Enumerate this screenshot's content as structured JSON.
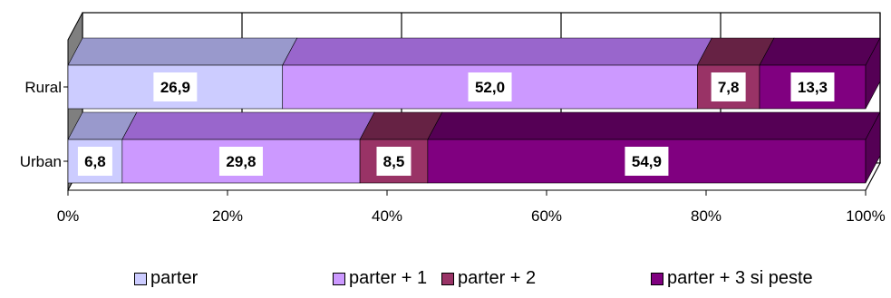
{
  "chart_data": {
    "type": "bar",
    "orientation": "horizontal",
    "stacked": true,
    "three_d": true,
    "categories": [
      "Rural",
      "Urban"
    ],
    "series": [
      {
        "name": "parter",
        "values": [
          26.9,
          6.8
        ],
        "color": "#ccccff",
        "top_color": "#9999cc"
      },
      {
        "name": "parter + 1",
        "values": [
          52.0,
          29.8
        ],
        "color": "#cc99ff",
        "top_color": "#9966cc"
      },
      {
        "name": "parter + 2",
        "values": [
          7.8,
          8.5
        ],
        "color": "#993366",
        "top_color": "#662244"
      },
      {
        "name": "parter + 3 si peste",
        "values": [
          13.3,
          54.9
        ],
        "color": "#800080",
        "top_color": "#550055"
      }
    ],
    "xlim": [
      0,
      100
    ],
    "x_ticks": [
      "0%",
      "20%",
      "40%",
      "60%",
      "80%",
      "100%"
    ],
    "grid": true,
    "legend_position": "bottom"
  }
}
